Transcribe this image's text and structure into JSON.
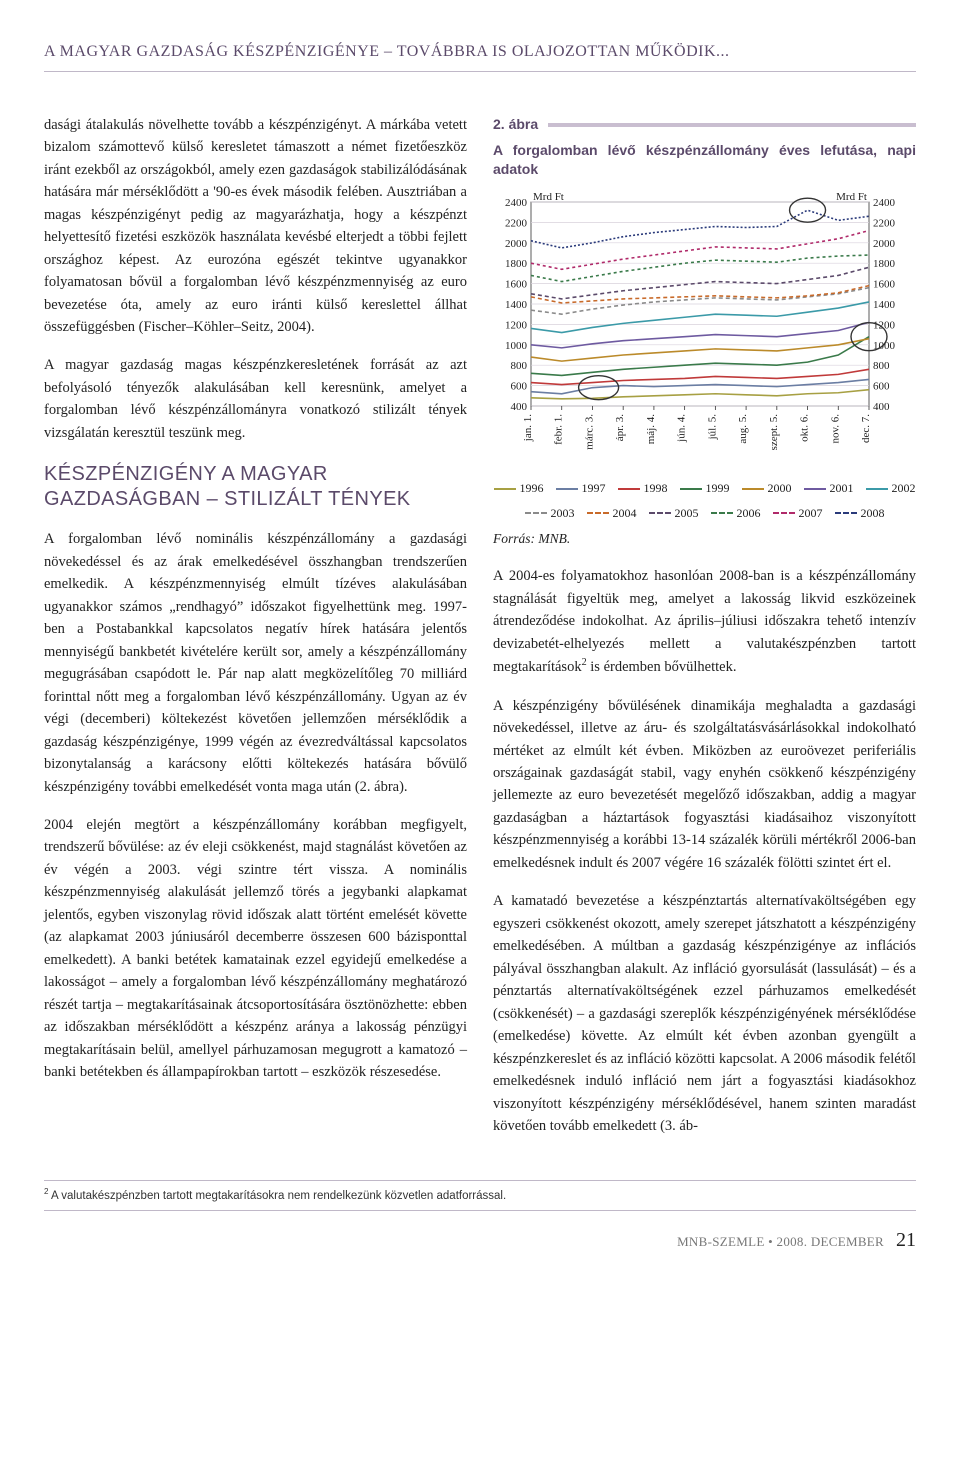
{
  "running_head": "A MAGYAR GAZDASÁG KÉSZPÉNZIGÉNYE – TOVÁBBRA IS OLAJOZOTTAN MŰKÖDIK...",
  "left": {
    "p1": "dasági átalakulás növelhette tovább a készpénzigényt. A márkába vetett bizalom számottevő külső keresletet támaszott a német fizetőeszköz iránt ezekből az országokból, amely ezen gazdaságok stabilizálódásának hatására már mérséklődött a '90-es évek második felében. Ausztriában a magas készpénzigényt pedig az magyarázhatja, hogy a készpénzt helyettesítő fizetési eszközök használata kevésbé elterjedt a többi fejlett országhoz képest. Az eurozóna egészét tekintve ugyanakkor folyamatosan bővül a forgalomban lévő készpénzmennyiség az euro bevezetése óta, amely az euro iránti külső kereslettel állhat összefüggésben (Fischer–Köhler–Seitz, 2004).",
    "p2": "A magyar gazdaság magas készpénzkeresletének forrását az azt befolyásoló tényezők alakulásában kell keresnünk, amelyet a forgalomban lévő készpénzállományra vonatkozó stilizált tények vizsgálatán keresztül teszünk meg.",
    "section": "KÉSZPÉNZIGÉNY A MAGYAR GAZDASÁGBAN – STILIZÁLT TÉNYEK",
    "p3": "A forgalomban lévő nominális készpénzállomány a gazdasági növekedéssel és az árak emelkedésével összhangban trendszerűen emelkedik. A készpénzmennyiség elmúlt tízéves alakulásában ugyanakkor számos „rendhagyó” időszakot figyelhettünk meg. 1997-ben a Postabankkal kapcsolatos negatív hírek hatására jelentős mennyiségű bankbetét kivételére került sor, amely a készpénzállomány megugrásában csapódott le. Pár nap alatt megközelítőleg 70 milliárd forinttal nőtt meg a forgalomban lévő készpénzállomány. Ugyan az év végi (decemberi) költekezést követően jellemzően mérséklődik a gazdaság készpénzigénye, 1999 végén az évezredváltással kapcsolatos bizonytalanság a karácsony előtti költekezés hatására bővülő készpénzigény további emelkedését vonta maga után (2. ábra).",
    "p4": "2004 elején megtört a készpénzállomány korábban megfigyelt, trendszerű bővülése: az év eleji csökkenést, majd stagnálást követően az év végén a 2003. végi szintre tért vissza. A nominális készpénzmennyiség alakulását jellemző törés a jegybanki alapkamat jelentős, egyben viszonylag rövid időszak alatt történt emelését követte (az alapkamat 2003 júniusáról decemberre összesen 600 bázisponttal emelkedett). A banki betétek kamatainak ezzel egyidejű emelkedése a lakosságot – amely a forgalomban lévő készpénzállomány meghatározó részét tartja – megtakarításainak átcsoportosítására ösztönözhette: ebben az időszakban mérséklődött a készpénz aránya a lakosság pénzügyi megtakarításain belül, amellyel párhuzamosan megugrott a kamatozó – banki betétekben és állampapírokban tartott – eszközök részesedése."
  },
  "figure": {
    "label": "2. ábra",
    "title": "A forgalomban lévő készpénzállomány éves lefutása, napi adatok",
    "unit_left": "Mrd Ft",
    "unit_right": "Mrd Ft",
    "source": "Forrás: MNB.",
    "ymin": 400,
    "ymax": 2400,
    "ystep": 200,
    "xlabels": [
      "jan. 1.",
      "febr. 1.",
      "márc. 3.",
      "ápr. 3.",
      "máj. 4.",
      "jún. 4.",
      "júl. 5.",
      "aug. 5.",
      "szept. 5.",
      "okt. 6.",
      "nov. 6.",
      "dec. 7."
    ],
    "series": [
      {
        "name": "1996",
        "color": "#a7a043",
        "dash": "",
        "values": [
          480,
          470,
          475,
          490,
          500,
          510,
          520,
          510,
          500,
          520,
          530,
          560
        ]
      },
      {
        "name": "1997",
        "color": "#6b7ea3",
        "dash": "",
        "values": [
          540,
          520,
          580,
          600,
          590,
          600,
          610,
          600,
          590,
          610,
          630,
          660
        ]
      },
      {
        "name": "1998",
        "color": "#c03a3a",
        "dash": "",
        "values": [
          630,
          610,
          630,
          650,
          660,
          670,
          690,
          680,
          670,
          690,
          710,
          760
        ]
      },
      {
        "name": "1999",
        "color": "#3a7a4a",
        "dash": "",
        "values": [
          720,
          700,
          730,
          760,
          780,
          800,
          820,
          810,
          800,
          830,
          900,
          1080
        ]
      },
      {
        "name": "2000",
        "color": "#bb8a2a",
        "dash": "",
        "values": [
          880,
          840,
          870,
          900,
          920,
          940,
          960,
          950,
          940,
          970,
          1000,
          1060
        ]
      },
      {
        "name": "2001",
        "color": "#6e5aa0",
        "dash": "",
        "values": [
          1000,
          970,
          1010,
          1040,
          1060,
          1080,
          1100,
          1090,
          1080,
          1110,
          1140,
          1220
        ]
      },
      {
        "name": "2002",
        "color": "#3b9aa8",
        "dash": "",
        "values": [
          1160,
          1120,
          1170,
          1210,
          1240,
          1270,
          1300,
          1290,
          1280,
          1320,
          1360,
          1420
        ]
      },
      {
        "name": "2003",
        "color": "#8a8a8a",
        "dash": "4 3",
        "values": [
          1340,
          1300,
          1350,
          1390,
          1420,
          1440,
          1460,
          1450,
          1440,
          1470,
          1500,
          1560
        ]
      },
      {
        "name": "2004",
        "color": "#c86a2a",
        "dash": "4 3",
        "values": [
          1470,
          1410,
          1430,
          1450,
          1460,
          1470,
          1480,
          1470,
          1460,
          1480,
          1510,
          1580
        ]
      },
      {
        "name": "2005",
        "color": "#5b4a6a",
        "dash": "4 3",
        "values": [
          1500,
          1450,
          1490,
          1530,
          1560,
          1590,
          1620,
          1610,
          1600,
          1640,
          1680,
          1760
        ]
      },
      {
        "name": "2006",
        "color": "#3a7a4a",
        "dash": "3 3",
        "values": [
          1680,
          1620,
          1670,
          1720,
          1760,
          1800,
          1830,
          1820,
          1810,
          1850,
          1870,
          1880
        ]
      },
      {
        "name": "2007",
        "color": "#b02a6a",
        "dash": "3 3",
        "values": [
          1800,
          1740,
          1790,
          1840,
          1880,
          1920,
          1960,
          1950,
          1940,
          1990,
          2040,
          2120
        ]
      },
      {
        "name": "2008",
        "color": "#2a3a7a",
        "dash": "2 2",
        "values": [
          2020,
          1950,
          2000,
          2060,
          2100,
          2130,
          2160,
          2150,
          2160,
          2320,
          2220,
          2260
        ]
      }
    ],
    "background_color": "#ffffff",
    "grid_color": "#d8d2dc",
    "axis_color": "#333333",
    "font_size": 11,
    "line_width": 1.6
  },
  "right": {
    "p1_a": "A 2004-es folyamatokhoz hasonlóan 2008-ban is a készpénzállomány stagnálását figyeltük meg, amelyet a lakosság likvid eszközeinek átrendeződése indokolhat. Az április–júliusi időszakra tehető intenzív devizabetét-elhelyezés mellett a valutakészpénzben tartott megtakarítások",
    "p1_b": " is érdemben bővülhettek.",
    "fn_mark": "2",
    "p2": "A készpénzigény bővülésének dinamikája meghaladta a gazdasági növekedéssel, illetve az áru- és szolgáltatásvásárlásokkal indokolható mértéket az elmúlt két évben. Miközben az euroövezet periferiális országainak gazdaságát stabil, vagy enyhén csökkenő készpénzigény jellemezte az euro bevezetését megelőző időszakban, addig a magyar gazdaságban a háztartások fogyasztási kiadásaihoz viszonyított készpénzmennyiség a korábbi 13-14 százalék körüli mértékről 2006-ban emelkedésnek indult és 2007 végére 16 százalék fölötti szintet ért el.",
    "p3": "A kamatadó bevezetése a készpénztartás alternatívaköltségében egy egyszeri csökkenést okozott, amely szerepet játszhatott a készpénzigény emelkedésében. A múltban a gazdaság készpénzigénye az inflációs pályával összhangban alakult. Az infláció gyorsulását (lassulását) – és a pénztartás alternatívaköltségének ezzel párhuzamos emelkedését (csökkenését) – a gazdasági szereplők készpénzigényének mérséklődése (emelkedése) követte. Az elmúlt két évben azonban gyengült a készpénzkereslet és az infláció közötti kapcsolat. A 2006 második felétől emelkedésnek induló infláció nem járt a fogyasztási kiadásokhoz viszonyított készpénzigény mérséklődésével, hanem szinten maradást követően tovább emelkedett (3. áb-"
  },
  "footnote": {
    "mark": "2",
    "text": " A valutakészpénzben tartott megtakarításokra nem rendelkezünk közvetlen adatforrással."
  },
  "footer": {
    "issue": "MNB-SZEMLE • 2008. DECEMBER",
    "page": "21"
  }
}
